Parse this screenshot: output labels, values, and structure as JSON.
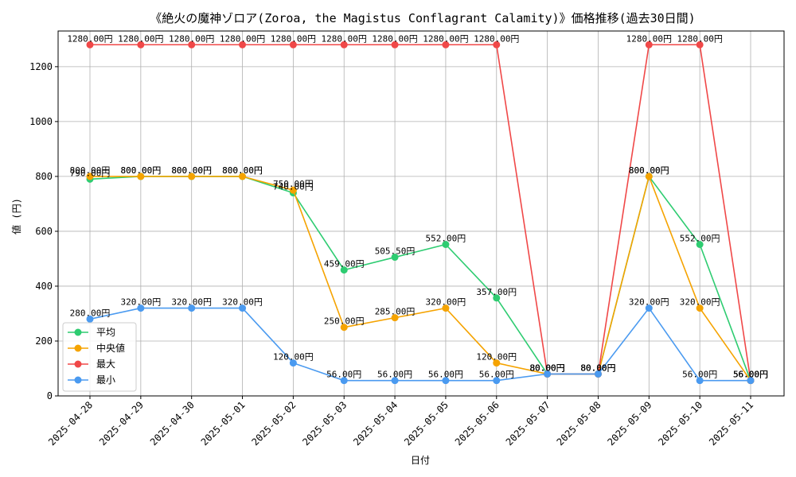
{
  "chart_data": {
    "type": "line",
    "title": "《絶火の魔神ゾロア(Zoroa, the Magistus Conflagrant Calamity)》価格推移(過去30日間)",
    "xlabel": "日付",
    "ylabel": "値 (円)",
    "ylim": [
      0,
      1330
    ],
    "yticks": [
      0,
      200,
      400,
      600,
      800,
      1000,
      1200
    ],
    "grid": true,
    "legend_position": "lower-left",
    "label_suffix": "円",
    "categories": [
      "2025-04-28",
      "2025-04-29",
      "2025-04-30",
      "2025-05-01",
      "2025-05-02",
      "2025-05-03",
      "2025-05-04",
      "2025-05-05",
      "2025-05-06",
      "2025-05-07",
      "2025-05-08",
      "2025-05-09",
      "2025-05-10",
      "2025-05-11"
    ],
    "series": [
      {
        "name": "平均",
        "color": "#2ecc71",
        "values": [
          790,
          800,
          800,
          800,
          740,
          459,
          505.5,
          552,
          357,
          80,
          80,
          800,
          552,
          56
        ]
      },
      {
        "name": "中央値",
        "color": "#f5a300",
        "values": [
          800,
          800,
          800,
          800,
          750,
          250,
          285,
          320,
          120,
          80,
          80,
          800,
          320,
          56
        ]
      },
      {
        "name": "最大",
        "color": "#f04848",
        "values": [
          1280,
          1280,
          1280,
          1280,
          1280,
          1280,
          1280,
          1280,
          1280,
          80,
          80,
          1280,
          1280,
          56
        ]
      },
      {
        "name": "最小",
        "color": "#4a9af0",
        "values": [
          280,
          320,
          320,
          320,
          120,
          56,
          56,
          56,
          56,
          80,
          80,
          320,
          56,
          56
        ]
      }
    ]
  }
}
